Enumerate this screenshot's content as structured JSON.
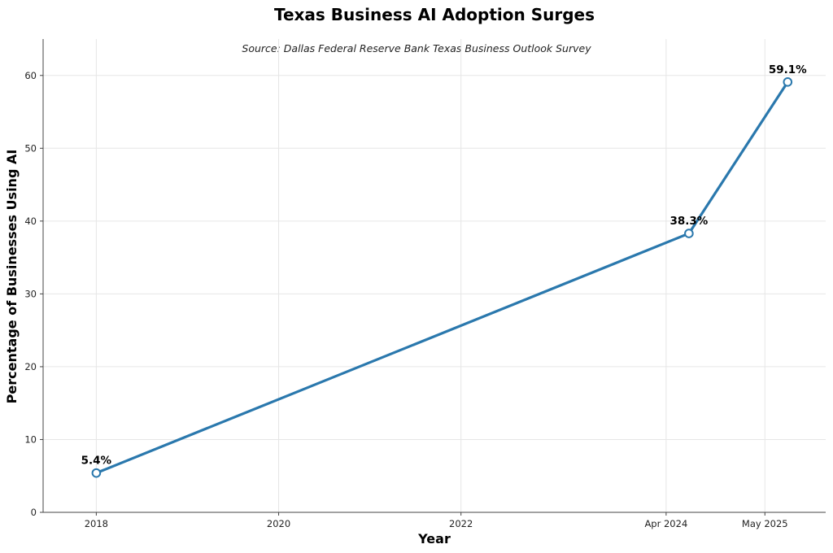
{
  "chart_data": {
    "type": "line",
    "title": "Texas Business AI Adoption Surges",
    "subtitle": "Source: Dallas Federal Reserve Bank Texas Business Outlook Survey",
    "xlabel": "Year",
    "ylabel": "Percentage of Businesses Using AI",
    "x_axis": {
      "type": "date",
      "range": [
        "2017-06",
        "2026-01"
      ],
      "ticks": [
        {
          "value": "2018-01",
          "label": "2018"
        },
        {
          "value": "2020-01",
          "label": "2020"
        },
        {
          "value": "2022-01",
          "label": "2022"
        },
        {
          "value": "2024-04",
          "label": "Apr 2024"
        },
        {
          "value": "2025-05",
          "label": "May 2025"
        }
      ]
    },
    "y_axis": {
      "range": [
        0,
        65
      ],
      "ticks": [
        0,
        10,
        20,
        30,
        40,
        50,
        60
      ]
    },
    "grid": true,
    "color": "#2a78ad",
    "points": [
      {
        "x": "2018-01",
        "y": 5.4,
        "label": "5.4%"
      },
      {
        "x": "2024-07",
        "y": 38.3,
        "label": "38.3%"
      },
      {
        "x": "2025-08",
        "y": 59.1,
        "label": "59.1%"
      }
    ]
  }
}
